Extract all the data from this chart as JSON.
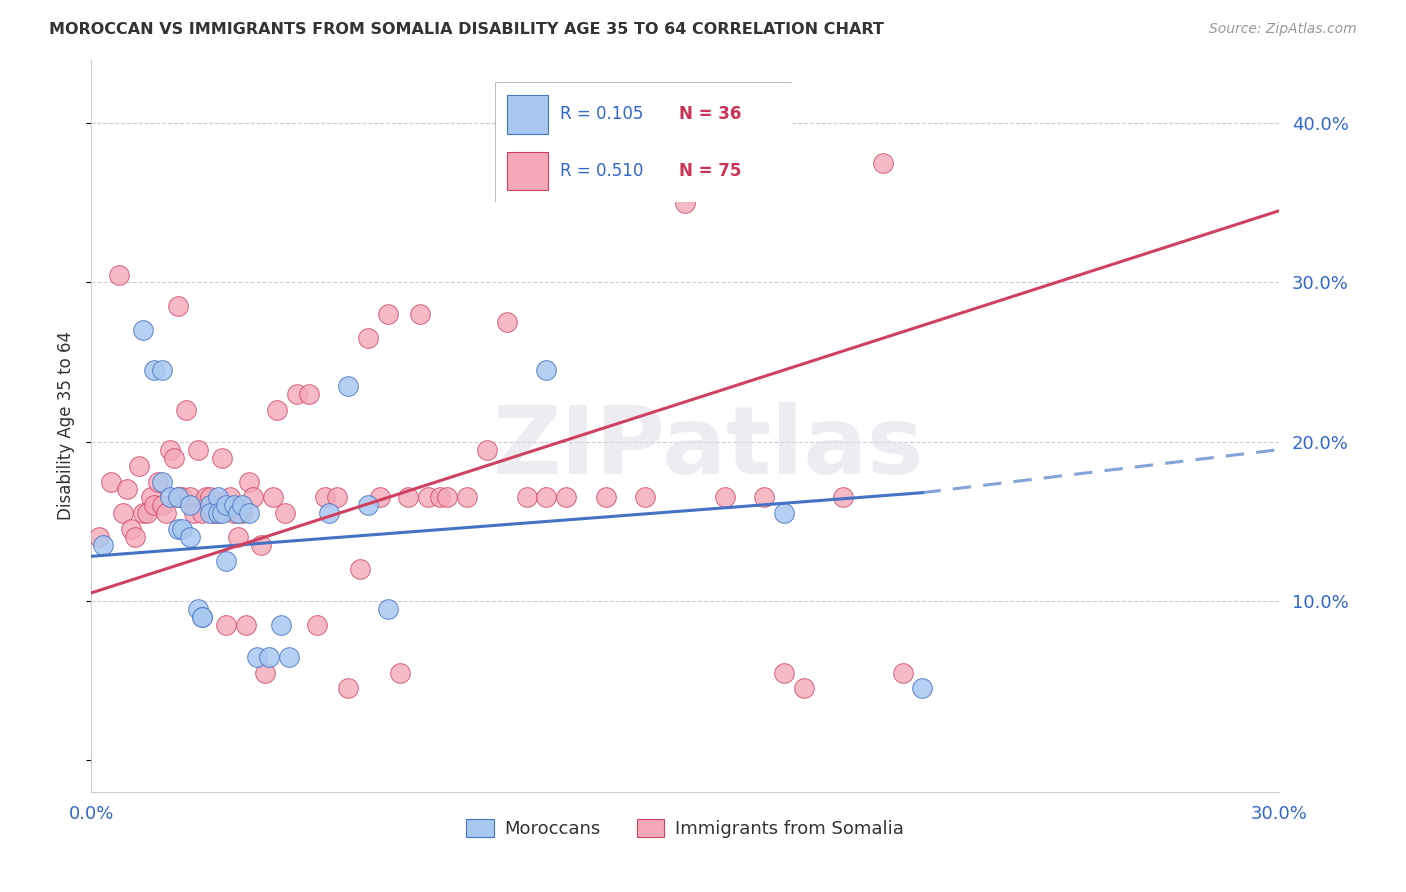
{
  "title": "MOROCCAN VS IMMIGRANTS FROM SOMALIA DISABILITY AGE 35 TO 64 CORRELATION CHART",
  "source": "Source: ZipAtlas.com",
  "ylabel": "Disability Age 35 to 64",
  "xlim": [
    0.0,
    0.3
  ],
  "ylim": [
    -0.02,
    0.44
  ],
  "blue_R": 0.105,
  "blue_N": 36,
  "pink_R": 0.51,
  "pink_N": 75,
  "blue_color": "#A8C8F0",
  "pink_color": "#F4A8B8",
  "blue_line_color": "#4472C4",
  "pink_line_color": "#D04060",
  "legend_label_blue": "Moroccans",
  "legend_label_pink": "Immigrants from Somalia",
  "blue_line_x0": 0.0,
  "blue_line_y0": 0.128,
  "blue_line_x1": 0.21,
  "blue_line_y1": 0.168,
  "blue_line_x2": 0.3,
  "blue_line_y2": 0.195,
  "pink_line_x0": 0.0,
  "pink_line_y0": 0.105,
  "pink_line_x1": 0.3,
  "pink_line_y1": 0.345,
  "blue_x": [
    0.003,
    0.013,
    0.016,
    0.018,
    0.018,
    0.02,
    0.022,
    0.022,
    0.023,
    0.025,
    0.025,
    0.027,
    0.028,
    0.028,
    0.03,
    0.03,
    0.032,
    0.032,
    0.033,
    0.034,
    0.034,
    0.036,
    0.037,
    0.038,
    0.04,
    0.042,
    0.045,
    0.048,
    0.05,
    0.06,
    0.065,
    0.07,
    0.075,
    0.115,
    0.175,
    0.21
  ],
  "blue_y": [
    0.135,
    0.27,
    0.245,
    0.245,
    0.175,
    0.165,
    0.165,
    0.145,
    0.145,
    0.16,
    0.14,
    0.095,
    0.09,
    0.09,
    0.16,
    0.155,
    0.165,
    0.155,
    0.155,
    0.16,
    0.125,
    0.16,
    0.155,
    0.16,
    0.155,
    0.065,
    0.065,
    0.085,
    0.065,
    0.155,
    0.235,
    0.16,
    0.095,
    0.245,
    0.155,
    0.045
  ],
  "pink_x": [
    0.002,
    0.005,
    0.007,
    0.008,
    0.009,
    0.01,
    0.011,
    0.012,
    0.013,
    0.014,
    0.015,
    0.016,
    0.017,
    0.018,
    0.019,
    0.02,
    0.021,
    0.022,
    0.022,
    0.023,
    0.024,
    0.025,
    0.026,
    0.027,
    0.028,
    0.029,
    0.03,
    0.031,
    0.032,
    0.033,
    0.034,
    0.035,
    0.036,
    0.037,
    0.038,
    0.039,
    0.04,
    0.041,
    0.043,
    0.044,
    0.046,
    0.047,
    0.049,
    0.052,
    0.055,
    0.057,
    0.059,
    0.062,
    0.065,
    0.068,
    0.07,
    0.073,
    0.075,
    0.078,
    0.08,
    0.083,
    0.085,
    0.088,
    0.09,
    0.095,
    0.1,
    0.105,
    0.11,
    0.115,
    0.12,
    0.13,
    0.14,
    0.15,
    0.16,
    0.17,
    0.175,
    0.18,
    0.19,
    0.2,
    0.205
  ],
  "pink_y": [
    0.14,
    0.175,
    0.305,
    0.155,
    0.17,
    0.145,
    0.14,
    0.185,
    0.155,
    0.155,
    0.165,
    0.16,
    0.175,
    0.16,
    0.155,
    0.195,
    0.19,
    0.165,
    0.285,
    0.165,
    0.22,
    0.165,
    0.155,
    0.195,
    0.155,
    0.165,
    0.165,
    0.155,
    0.155,
    0.19,
    0.085,
    0.165,
    0.155,
    0.14,
    0.155,
    0.085,
    0.175,
    0.165,
    0.135,
    0.055,
    0.165,
    0.22,
    0.155,
    0.23,
    0.23,
    0.085,
    0.165,
    0.165,
    0.045,
    0.12,
    0.265,
    0.165,
    0.28,
    0.055,
    0.165,
    0.28,
    0.165,
    0.165,
    0.165,
    0.165,
    0.195,
    0.275,
    0.165,
    0.165,
    0.165,
    0.165,
    0.165,
    0.35,
    0.165,
    0.165,
    0.055,
    0.045,
    0.165,
    0.375,
    0.055
  ]
}
